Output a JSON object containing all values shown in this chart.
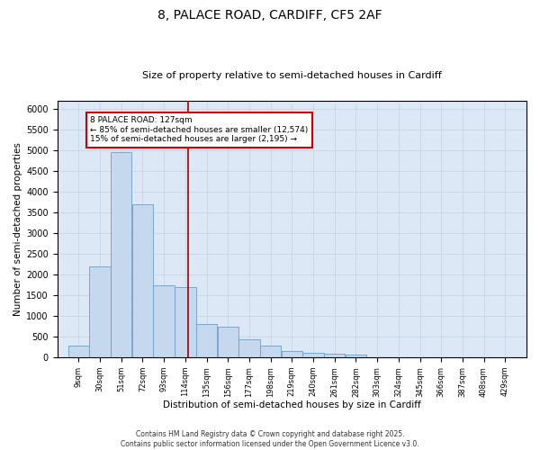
{
  "title1": "8, PALACE ROAD, CARDIFF, CF5 2AF",
  "title2": "Size of property relative to semi-detached houses in Cardiff",
  "xlabel": "Distribution of semi-detached houses by size in Cardiff",
  "ylabel": "Number of semi-detached properties",
  "footer_line1": "Contains HM Land Registry data © Crown copyright and database right 2025.",
  "footer_line2": "Contains public sector information licensed under the Open Government Licence v3.0.",
  "annotation_line1": "8 PALACE ROAD: 127sqm",
  "annotation_line2": "← 85% of semi-detached houses are smaller (12,574)",
  "annotation_line3": "15% of semi-detached houses are larger (2,195) →",
  "bar_color": "#c5d8ee",
  "bar_edge_color": "#6a9fc8",
  "grid_color": "#c8d8e8",
  "background_color": "#dce8f5",
  "vline_color": "#990000",
  "annotation_box_color": "#cc0000",
  "bin_labels": [
    "9sqm",
    "30sqm",
    "51sqm",
    "72sqm",
    "93sqm",
    "114sqm",
    "135sqm",
    "156sqm",
    "177sqm",
    "198sqm",
    "219sqm",
    "240sqm",
    "261sqm",
    "282sqm",
    "303sqm",
    "324sqm",
    "345sqm",
    "366sqm",
    "387sqm",
    "408sqm",
    "429sqm"
  ],
  "bin_edges": [
    9,
    30,
    51,
    72,
    93,
    114,
    135,
    156,
    177,
    198,
    219,
    240,
    261,
    282,
    303,
    324,
    345,
    366,
    387,
    408,
    429
  ],
  "bar_heights": [
    280,
    2200,
    4950,
    3700,
    1750,
    1700,
    800,
    750,
    430,
    290,
    160,
    120,
    80,
    60,
    0,
    0,
    0,
    0,
    0,
    0
  ],
  "property_sqm": 127,
  "ylim": [
    0,
    6200
  ],
  "yticks": [
    0,
    500,
    1000,
    1500,
    2000,
    2500,
    3000,
    3500,
    4000,
    4500,
    5000,
    5500,
    6000
  ],
  "figsize": [
    6.0,
    5.0
  ],
  "dpi": 100
}
